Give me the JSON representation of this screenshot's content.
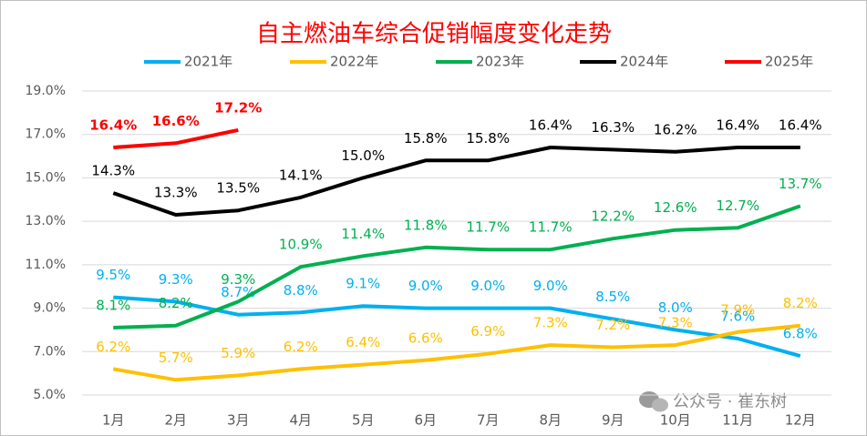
{
  "chart_data": {
    "type": "line",
    "title": "自主燃油车综合促销幅度变化走势",
    "watermark": "公众号 · 崔东树",
    "categories": [
      "1月",
      "2月",
      "3月",
      "4月",
      "5月",
      "6月",
      "7月",
      "8月",
      "9月",
      "10月",
      "11月",
      "12月"
    ],
    "series": [
      {
        "name": "2021年",
        "color": "#00b0f0",
        "values": [
          9.5,
          9.3,
          8.7,
          8.8,
          9.1,
          9.0,
          9.0,
          9.0,
          8.5,
          8.0,
          7.6,
          6.8
        ],
        "value_labels": [
          "9.5%",
          "9.3%",
          "8.7%",
          "8.8%",
          "9.1%",
          "9.0%",
          "9.0%",
          "9.0%",
          "8.5%",
          "8.0%",
          "7.6%",
          "6.8%"
        ]
      },
      {
        "name": "2022年",
        "color": "#ffc000",
        "values": [
          6.2,
          5.7,
          5.9,
          6.2,
          6.4,
          6.6,
          6.9,
          7.3,
          7.2,
          7.3,
          7.9,
          8.2
        ],
        "value_labels": [
          "6.2%",
          "5.7%",
          "5.9%",
          "6.2%",
          "6.4%",
          "6.6%",
          "6.9%",
          "7.3%",
          "7.2%",
          "7.3%",
          "7.9%",
          "8.2%"
        ]
      },
      {
        "name": "2023年",
        "color": "#00b050",
        "values": [
          8.1,
          8.2,
          9.3,
          10.9,
          11.4,
          11.8,
          11.7,
          11.7,
          12.2,
          12.6,
          12.7,
          13.7
        ],
        "value_labels": [
          "8.1%",
          "8.2%",
          "9.3%",
          "10.9%",
          "11.4%",
          "11.8%",
          "11.7%",
          "11.7%",
          "12.2%",
          "12.6%",
          "12.7%",
          "13.7%"
        ]
      },
      {
        "name": "2024年",
        "color": "#000000",
        "values": [
          14.3,
          13.3,
          13.5,
          14.1,
          15.0,
          15.8,
          15.8,
          16.4,
          16.3,
          16.2,
          16.4,
          16.4
        ],
        "value_labels": [
          "14.3%",
          "13.3%",
          "13.5%",
          "14.1%",
          "15.0%",
          "15.8%",
          "15.8%",
          "16.4%",
          "16.3%",
          "16.2%",
          "16.4%",
          "16.4%"
        ]
      },
      {
        "name": "2025年",
        "color": "#ff0000",
        "values": [
          16.4,
          16.6,
          17.2,
          null,
          null,
          null,
          null,
          null,
          null,
          null,
          null,
          null
        ],
        "value_labels": [
          "16.4%",
          "16.6%",
          "17.2%",
          null,
          null,
          null,
          null,
          null,
          null,
          null,
          null,
          null
        ]
      }
    ],
    "ylim": [
      5,
      19
    ],
    "yticks": [
      {
        "value": 5,
        "label": "5.0%"
      },
      {
        "value": 7,
        "label": "7.0%"
      },
      {
        "value": 9,
        "label": "9.0%"
      },
      {
        "value": 11,
        "label": "11.0%"
      },
      {
        "value": 13,
        "label": "13.0%"
      },
      {
        "value": 15,
        "label": "15.0%"
      },
      {
        "value": 17,
        "label": "17.0%"
      },
      {
        "value": 19,
        "label": "19.0%"
      }
    ],
    "grid": true,
    "legend": "top"
  }
}
